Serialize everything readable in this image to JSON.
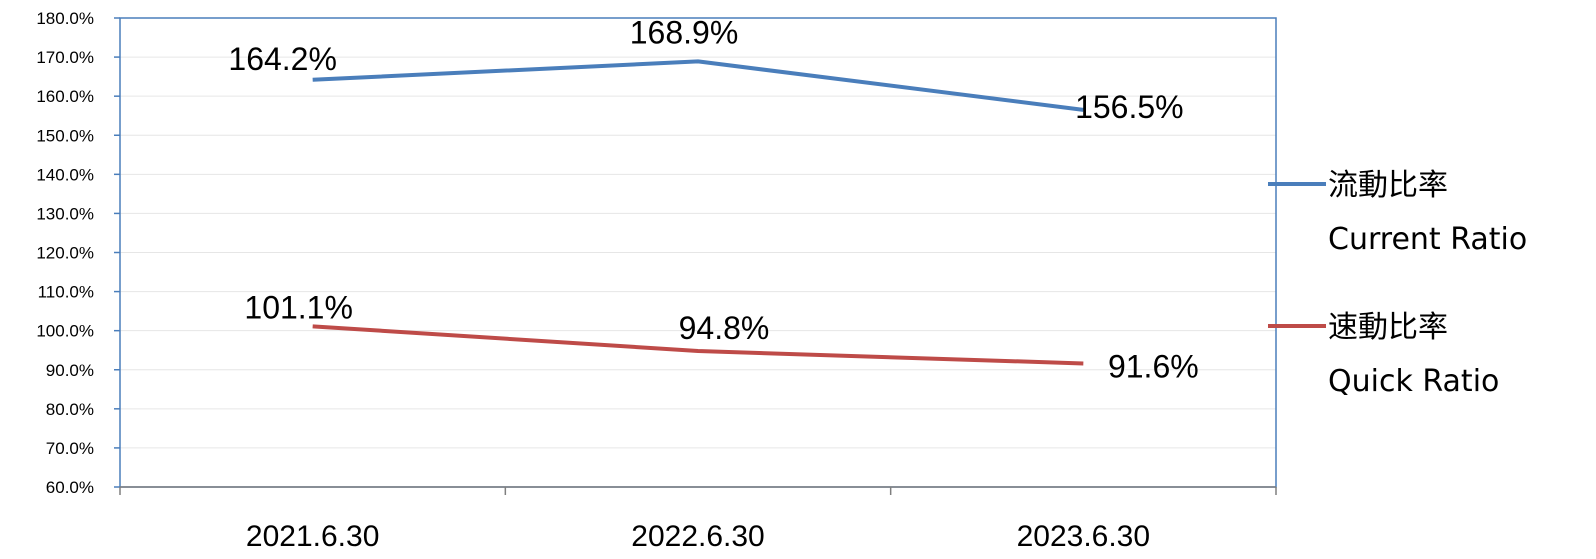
{
  "chart_data": {
    "type": "line",
    "categories": [
      "2021.6.30",
      "2022.6.30",
      "2023.6.30"
    ],
    "series": [
      {
        "name": "流動比率",
        "name_en": "Current Ratio",
        "color": "#4a7ebb",
        "values": [
          164.2,
          168.9,
          156.5
        ],
        "labels": [
          "164.2%",
          "168.9%",
          "156.5%"
        ]
      },
      {
        "name": "速動比率",
        "name_en": "Quick Ratio",
        "color": "#be4b48",
        "values": [
          101.1,
          94.8,
          91.6
        ],
        "labels": [
          "101.1%",
          "94.8%",
          "91.6%"
        ]
      }
    ],
    "ylim": [
      60,
      180
    ],
    "ytick_step": 10,
    "ytick_labels": [
      "60.0%",
      "70.0%",
      "80.0%",
      "90.0%",
      "100.0%",
      "110.0%",
      "120.0%",
      "130.0%",
      "140.0%",
      "150.0%",
      "160.0%",
      "170.0%",
      "180.0%"
    ],
    "grid": true,
    "legend_position": "right",
    "axis_color": "#4a7ebb",
    "grid_color": "#e6e6e6"
  }
}
